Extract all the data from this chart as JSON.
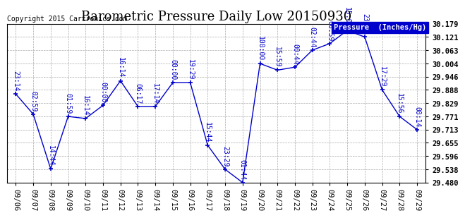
{
  "title": "Barometric Pressure Daily Low 20150930",
  "copyright": "Copyright 2015 Cartronics.com",
  "legend_label": "Pressure  (Inches/Hg)",
  "x_labels": [
    "09/06",
    "09/07",
    "09/08",
    "09/09",
    "09/10",
    "09/11",
    "09/12",
    "09/13",
    "09/14",
    "09/15",
    "09/16",
    "09/17",
    "09/18",
    "09/19",
    "09/20",
    "09/21",
    "09/22",
    "09/23",
    "09/24",
    "09/25",
    "09/26",
    "09/27",
    "09/28",
    "09/29"
  ],
  "y_values": [
    29.87,
    29.781,
    29.54,
    29.771,
    29.762,
    29.82,
    29.928,
    29.815,
    29.815,
    29.92,
    29.92,
    29.644,
    29.538,
    29.48,
    30.004,
    29.975,
    29.988,
    30.063,
    30.092,
    30.15,
    30.121,
    29.888,
    29.771,
    29.713
  ],
  "point_labels": [
    "23:14",
    "02:59",
    "14:44",
    "01:59",
    "16:14",
    "00:00",
    "16:14",
    "06:17",
    "17:14",
    "00:00",
    "19:29",
    "15:44",
    "23:29",
    "01:44",
    "100:00",
    "15:59",
    "00:44",
    "02:44",
    "06:59",
    "15:00",
    "23:59",
    "17:29",
    "15:56",
    "00:14"
  ],
  "ylim_min": 29.48,
  "ylim_max": 30.179,
  "yticks": [
    29.48,
    29.538,
    29.596,
    29.655,
    29.713,
    29.771,
    29.829,
    29.888,
    29.946,
    30.004,
    30.063,
    30.121,
    30.179
  ],
  "line_color": "#0000cc",
  "marker_color": "#0000cc",
  "bg_color": "#ffffff",
  "grid_color": "#aaaaaa",
  "title_fontsize": 13,
  "label_fontsize": 7.5,
  "annotation_fontsize": 7
}
